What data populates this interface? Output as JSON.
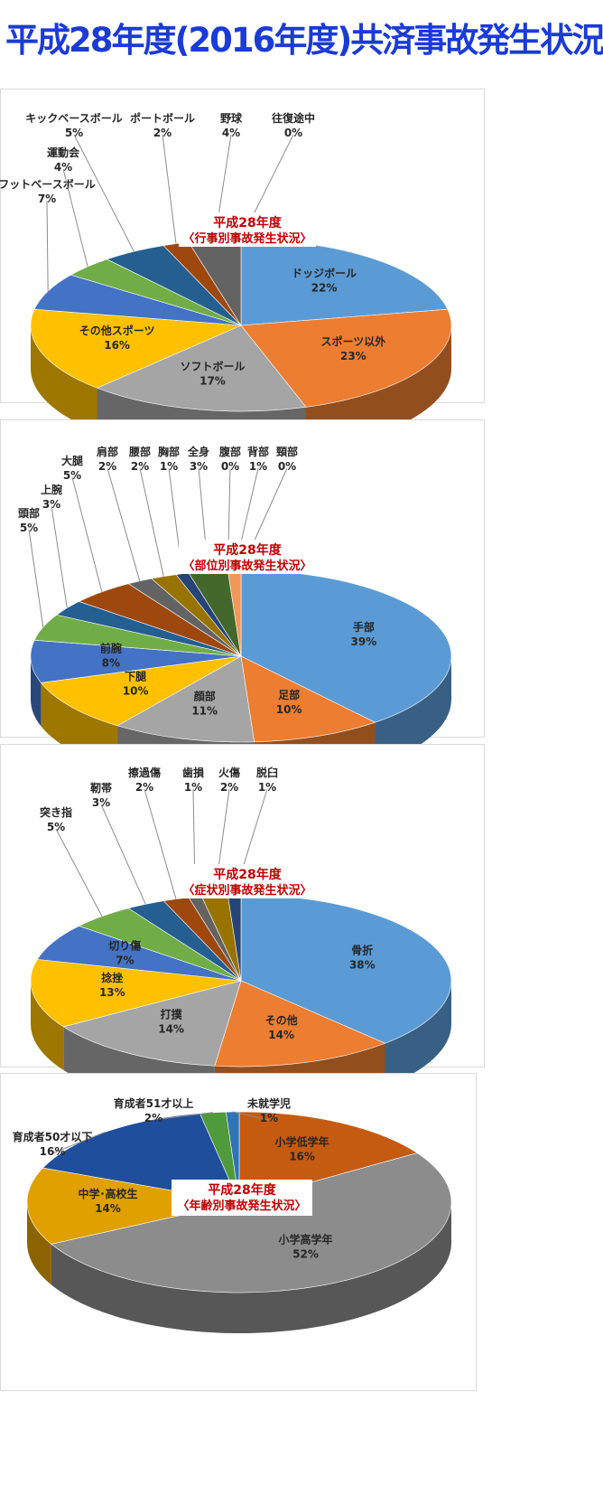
{
  "page": {
    "title": "平成28年度(2016年度)共済事故発生状況"
  },
  "chart_data": [
    {
      "type": "pie",
      "title": "平成28年度",
      "subtitle": "〈行事別事故発生状況〉",
      "series": [
        {
          "values": [
            22,
            23,
            17,
            16,
            7,
            4,
            5,
            2,
            4,
            0
          ]
        }
      ],
      "categories": [
        "ドッジボール",
        "スポーツ以外",
        "ソフトボール",
        "その他スポーツ",
        "フットベースボール",
        "運動会",
        "キックベースボール",
        "ポートボール",
        "野球",
        "往復途中"
      ],
      "data_labels": [
        "22%",
        "23%",
        "17%",
        "16%",
        "7%",
        "4%",
        "5%",
        "2%",
        "4%",
        "0%"
      ],
      "colors": [
        "#5b9bd5",
        "#ed7d31",
        "#a5a5a5",
        "#ffc000",
        "#4472c4",
        "#70ad47",
        "#255e91",
        "#9e480e",
        "#636363",
        "#997300"
      ]
    },
    {
      "type": "pie",
      "title": "平成28年度",
      "subtitle": "〈部位別事故発生状況〉",
      "series": [
        {
          "values": [
            39,
            10,
            11,
            10,
            8,
            5,
            3,
            5,
            2,
            2,
            1,
            3,
            0,
            1,
            0
          ]
        }
      ],
      "categories": [
        "手部",
        "足部",
        "顔部",
        "下腿",
        "前腕",
        "頭部",
        "上腕",
        "大腿",
        "肩部",
        "腰部",
        "胸部",
        "全身",
        "腹部",
        "背部",
        "頸部"
      ],
      "data_labels": [
        "39%",
        "10%",
        "11%",
        "10%",
        "8%",
        "5%",
        "3%",
        "5%",
        "2%",
        "2%",
        "1%",
        "3%",
        "0%",
        "1%",
        "0%"
      ],
      "colors": [
        "#5b9bd5",
        "#ed7d31",
        "#a5a5a5",
        "#ffc000",
        "#4472c4",
        "#70ad47",
        "#255e91",
        "#9e480e",
        "#636363",
        "#997300",
        "#264478",
        "#43682b",
        "#7cafdd",
        "#f1975a",
        "#b7b7b7"
      ]
    },
    {
      "type": "pie",
      "title": "平成28年度",
      "subtitle": "〈症状別事故発生状況〉",
      "series": [
        {
          "values": [
            38,
            14,
            14,
            13,
            7,
            5,
            3,
            2,
            1,
            2,
            1
          ]
        }
      ],
      "categories": [
        "骨折",
        "その他",
        "打撲",
        "捻挫",
        "切り傷",
        "突き指",
        "靭帯",
        "擦過傷",
        "歯損",
        "火傷",
        "脱臼"
      ],
      "data_labels": [
        "38%",
        "14%",
        "14%",
        "13%",
        "7%",
        "5%",
        "3%",
        "2%",
        "1%",
        "2%",
        "1%"
      ],
      "colors": [
        "#5b9bd5",
        "#ed7d31",
        "#a5a5a5",
        "#ffc000",
        "#4472c4",
        "#70ad47",
        "#255e91",
        "#9e480e",
        "#636363",
        "#997300",
        "#264478"
      ]
    },
    {
      "type": "pie",
      "title": "平成28年度",
      "subtitle": "〈年齢別事故発生状況〉",
      "series": [
        {
          "values": [
            16,
            52,
            14,
            16,
            2,
            1
          ]
        }
      ],
      "categories": [
        "小学低学年",
        "小学高学年",
        "中学･高校生",
        "育成者50才以下",
        "育成者51才以上",
        "未就学児"
      ],
      "data_labels": [
        "16%",
        "52%",
        "14%",
        "16%",
        "2%",
        "1%"
      ],
      "colors": [
        "#c55a11",
        "#8c8c8c",
        "#e0a000",
        "#1f4e9c",
        "#4f9a3a",
        "#2e75b6"
      ]
    }
  ]
}
